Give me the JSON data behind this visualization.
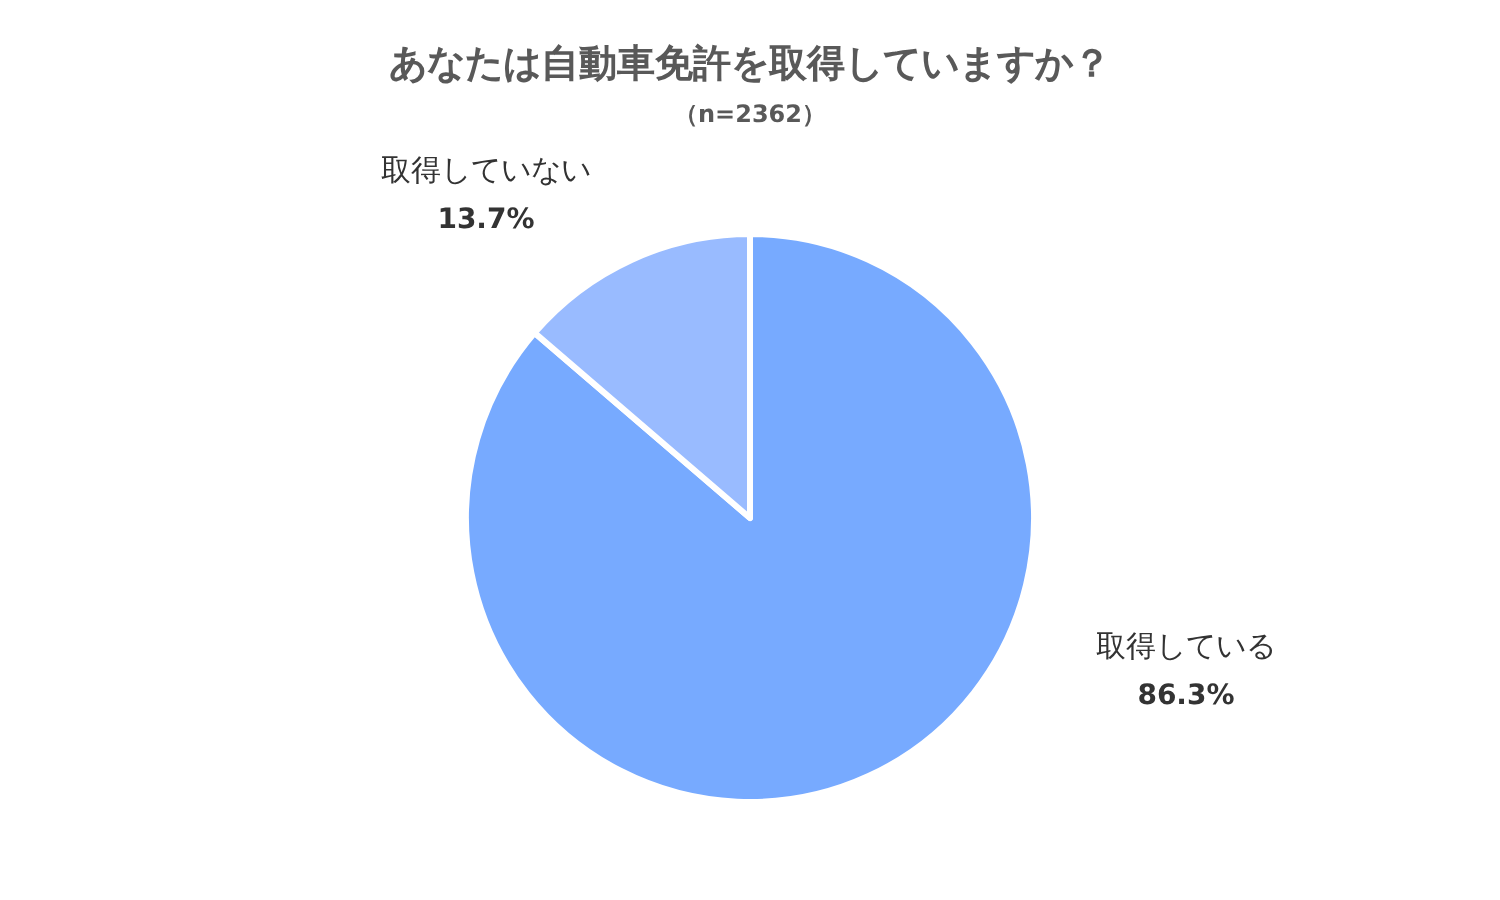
{
  "chart_data": {
    "type": "pie",
    "title": "あなたは自動車免許を取得していますか？",
    "subtitle": "（n=2362）",
    "categories": [
      "取得している",
      "取得していない"
    ],
    "values": [
      86.3,
      13.7
    ],
    "colors": [
      "#77aaff",
      "#99bbff"
    ],
    "value_labels": [
      "86.3%",
      "13.7%"
    ]
  }
}
